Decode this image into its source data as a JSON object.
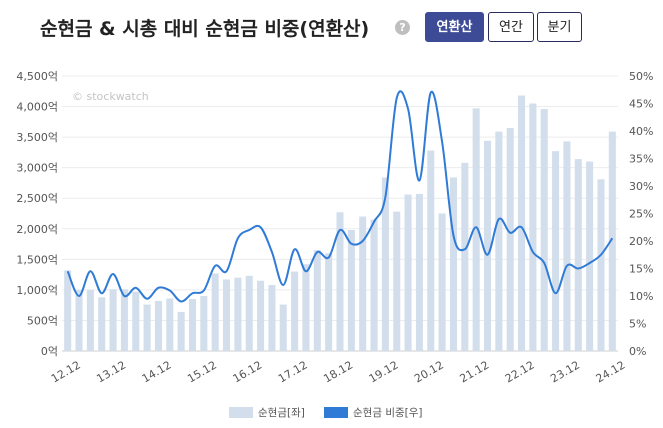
{
  "header": {
    "title": "순현금 & 시총 대비 순현금 비중(연환산)",
    "help_icon": "?",
    "tabs": [
      {
        "label": "연환산",
        "active": true
      },
      {
        "label": "연간",
        "active": false
      },
      {
        "label": "분기",
        "active": false
      }
    ]
  },
  "watermark": "© stockwatch",
  "colors": {
    "bar": "#d2deec",
    "line": "#2f7bd6",
    "active_tab": "#3d4a96"
  },
  "chart_data": {
    "type": "bar+line",
    "categories": [
      "12.12",
      "13.03",
      "13.06",
      "13.09",
      "13.12",
      "14.03",
      "14.06",
      "14.09",
      "14.12",
      "15.03",
      "15.06",
      "15.09",
      "15.12",
      "16.03",
      "16.06",
      "16.09",
      "16.12",
      "17.03",
      "17.06",
      "17.09",
      "17.12",
      "18.03",
      "18.06",
      "18.09",
      "18.12",
      "19.03",
      "19.06",
      "19.09",
      "19.12",
      "20.03",
      "20.06",
      "20.09",
      "20.12",
      "21.03",
      "21.06",
      "21.09",
      "21.12",
      "22.03",
      "22.06",
      "22.09",
      "22.12",
      "23.03",
      "23.06",
      "23.09",
      "23.12",
      "24.03",
      "24.06",
      "24.09",
      "24.12"
    ],
    "x_tick_labels": [
      "12.12",
      "13.12",
      "14.12",
      "15.12",
      "16.12",
      "17.12",
      "18.12",
      "19.12",
      "20.12",
      "21.12",
      "22.12",
      "23.12",
      "24.12"
    ],
    "y_left": {
      "ticks": [
        "0억",
        "500억",
        "1,000억",
        "1,500억",
        "2,000억",
        "2,500억",
        "3,000억",
        "3,500억",
        "4,000억",
        "4,500억"
      ],
      "ylim": [
        0,
        4500
      ]
    },
    "y_right": {
      "ticks": [
        "0%",
        "5%",
        "10%",
        "15%",
        "20%",
        "25%",
        "30%",
        "35%",
        "40%",
        "45%",
        "50%"
      ],
      "ylim": [
        0,
        50
      ]
    },
    "grid": true,
    "legend_position": "bottom",
    "series": [
      {
        "name": "순현금[좌]",
        "type": "bar",
        "axis": "left",
        "values": [
          1320,
          1000,
          1000,
          880,
          1010,
          1010,
          970,
          760,
          820,
          860,
          640,
          850,
          900,
          1270,
          1170,
          1200,
          1230,
          1150,
          1080,
          760,
          1300,
          1420,
          1650,
          1600,
          2270,
          1980,
          2200,
          2150,
          2840,
          2280,
          2560,
          2570,
          3280,
          2250,
          2840,
          3080,
          3970,
          3440,
          3590,
          3650,
          4180,
          4050,
          3960,
          3270,
          3430,
          3140,
          3100,
          2810,
          3590
        ]
      },
      {
        "name": "순현금 비중[우]",
        "type": "line",
        "axis": "right",
        "values": [
          14.5,
          10.0,
          14.5,
          10.5,
          14.0,
          10.0,
          11.5,
          9.5,
          11.5,
          11.0,
          9.0,
          10.5,
          11.0,
          15.5,
          14.5,
          20.5,
          22.0,
          22.5,
          18.0,
          12.0,
          18.5,
          14.5,
          18.0,
          17.0,
          22.0,
          19.5,
          20.0,
          23.5,
          28.0,
          46.0,
          44.0,
          31.0,
          47.0,
          38.0,
          21.0,
          18.5,
          22.5,
          17.5,
          24.0,
          21.5,
          22.5,
          18.0,
          16.0,
          10.5,
          15.5,
          15.0,
          16.0,
          17.5,
          20.5
        ]
      }
    ]
  }
}
